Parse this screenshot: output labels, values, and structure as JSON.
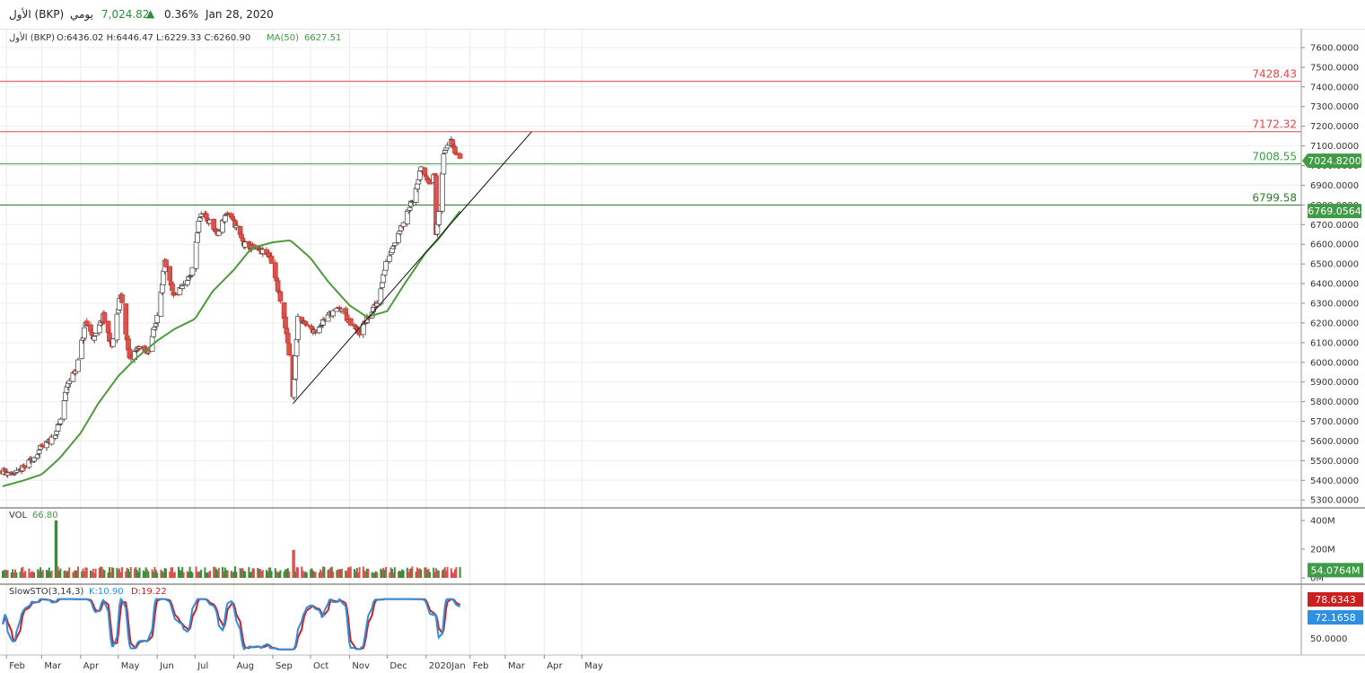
{
  "header": {
    "symbol": "الأول (BKP)",
    "interval": "يومي",
    "last_price": "7,024.82",
    "change_pct": "0.36%",
    "date": "Jan 28, 2020",
    "up_color": "#2e8b3d"
  },
  "legend": {
    "symbol": "الأول (BKP)",
    "ohlc": "O:6436.02  H:6446.47  L:6229.33  C:6260.90",
    "ma_label": "MA(50)",
    "ma_value": "6627.51"
  },
  "chart_data": [
    {
      "type": "candlestick",
      "title": "",
      "x_tick_labels": [
        "Feb",
        "Mar",
        "Apr",
        "May",
        "Jun",
        "Jul",
        "Aug",
        "Sep",
        "Oct",
        "Nov",
        "Dec",
        "2020Jan",
        "Feb",
        "Mar",
        "Apr",
        "May"
      ],
      "y_tick_labels": [
        "5300.0000",
        "5400.0000",
        "5500.0000",
        "5600.0000",
        "5700.0000",
        "5800.0000",
        "5900.0000",
        "6000.0000",
        "6100.0000",
        "6200.0000",
        "6300.0000",
        "6400.0000",
        "6500.0000",
        "6600.0000",
        "6700.0000",
        "6800.0000",
        "6900.0000",
        "7000.0000",
        "7100.0000",
        "7200.0000",
        "7300.0000",
        "7400.0000",
        "7500.0000",
        "7600.0000"
      ],
      "ylim": [
        5260,
        7650
      ],
      "last_price_tag": "7024.8200",
      "ma_price_tag": "6769.0564",
      "horizontal_levels": [
        {
          "value": 7428.43,
          "label": "7428.43",
          "color": "#e0474c"
        },
        {
          "value": 7172.32,
          "label": "7172.32",
          "color": "#e0474c"
        },
        {
          "value": 7008.55,
          "label": "7008.55",
          "color": "#3f9b45"
        },
        {
          "value": 6799.58,
          "label": "6799.58",
          "color": "#2c7a2c"
        }
      ],
      "trendline": {
        "start": {
          "date": "Sep 17",
          "price": 5790
        },
        "end": {
          "date": "Mar 22",
          "price": 7172
        }
      },
      "close_path": [
        [
          "Jan 29",
          5450
        ],
        [
          "Feb 8",
          5430
        ],
        [
          "Feb 18",
          5480
        ],
        [
          "Feb 28",
          5560
        ],
        [
          "Mar 8",
          5600
        ],
        [
          "Mar 15",
          5680
        ],
        [
          "Mar 22",
          5900
        ],
        [
          "Mar 29",
          5970
        ],
        [
          "Apr 5",
          6200
        ],
        [
          "Apr 12",
          6120
        ],
        [
          "Apr 19",
          6230
        ],
        [
          "Apr 26",
          6080
        ],
        [
          "May 3",
          6350
        ],
        [
          "May 10",
          6010
        ],
        [
          "May 17",
          6080
        ],
        [
          "May 24",
          6050
        ],
        [
          "May 31",
          6200
        ],
        [
          "Jun 7",
          6500
        ],
        [
          "Jun 14",
          6330
        ],
        [
          "Jun 21",
          6380
        ],
        [
          "Jun 28",
          6440
        ],
        [
          "Jul 5",
          6750
        ],
        [
          "Jul 12",
          6720
        ],
        [
          "Jul 19",
          6650
        ],
        [
          "Jul 26",
          6760
        ],
        [
          "Aug 2",
          6700
        ],
        [
          "Aug 9",
          6600
        ],
        [
          "Aug 16",
          6580
        ],
        [
          "Aug 23",
          6560
        ],
        [
          "Aug 30",
          6540
        ],
        [
          "Sep 6",
          6350
        ],
        [
          "Sep 13",
          6100
        ],
        [
          "Sep 17",
          5820
        ],
        [
          "Sep 21",
          6230
        ],
        [
          "Sep 28",
          6180
        ],
        [
          "Oct 5",
          6160
        ],
        [
          "Oct 12",
          6220
        ],
        [
          "Oct 19",
          6260
        ],
        [
          "Oct 26",
          6270
        ],
        [
          "Nov 2",
          6190
        ],
        [
          "Nov 9",
          6150
        ],
        [
          "Nov 16",
          6230
        ],
        [
          "Nov 23",
          6300
        ],
        [
          "Nov 30",
          6500
        ],
        [
          "Dec 7",
          6620
        ],
        [
          "Dec 14",
          6720
        ],
        [
          "Dec 21",
          6830
        ],
        [
          "Dec 28",
          6980
        ],
        [
          "Jan 4",
          6920
        ],
        [
          "Jan 8",
          6950
        ],
        [
          "Jan 9",
          6650
        ],
        [
          "Jan 12",
          6800
        ],
        [
          "Jan 15",
          7050
        ],
        [
          "Jan 18",
          7120
        ],
        [
          "Jan 21",
          7140
        ],
        [
          "Jan 25",
          7060
        ],
        [
          "Jan 28",
          7025
        ]
      ],
      "ma50": [
        [
          "Jan 29",
          5370
        ],
        [
          "Feb 15",
          5400
        ],
        [
          "Mar 1",
          5430
        ],
        [
          "Mar 15",
          5510
        ],
        [
          "Apr 1",
          5640
        ],
        [
          "Apr 15",
          5790
        ],
        [
          "May 1",
          5930
        ],
        [
          "May 15",
          6020
        ],
        [
          "Jun 1",
          6110
        ],
        [
          "Jun 15",
          6170
        ],
        [
          "Jul 1",
          6220
        ],
        [
          "Jul 15",
          6360
        ],
        [
          "Aug 1",
          6470
        ],
        [
          "Aug 15",
          6580
        ],
        [
          "Sep 1",
          6610
        ],
        [
          "Sep 15",
          6620
        ],
        [
          "Oct 1",
          6530
        ],
        [
          "Oct 15",
          6410
        ],
        [
          "Nov 1",
          6290
        ],
        [
          "Nov 15",
          6230
        ],
        [
          "Dec 1",
          6260
        ],
        [
          "Dec 15",
          6400
        ],
        [
          "Jan 1",
          6560
        ],
        [
          "Jan 10",
          6620
        ],
        [
          "Jan 28",
          6769
        ]
      ]
    },
    {
      "type": "bar",
      "title": "VOL",
      "value_label": "66.80",
      "y_tick_labels": [
        "400M",
        "200M",
        "0M"
      ],
      "ylim": [
        0,
        450
      ],
      "last_tag": "54.0764M",
      "notable_values_M": {
        "Mar 12": 400,
        "Sep 17": 195
      }
    },
    {
      "type": "line",
      "title": "SlowSTO(3,14,3)",
      "k_label": "K:10.90",
      "d_label": "D:19.22",
      "y_tick_labels": [
        "50.0000"
      ],
      "ylim": [
        0,
        100
      ],
      "k_tag": "78.6343",
      "d_tag": "72.1658",
      "k_color": "#2f8fe0",
      "d_color": "#cc1f1f"
    }
  ]
}
